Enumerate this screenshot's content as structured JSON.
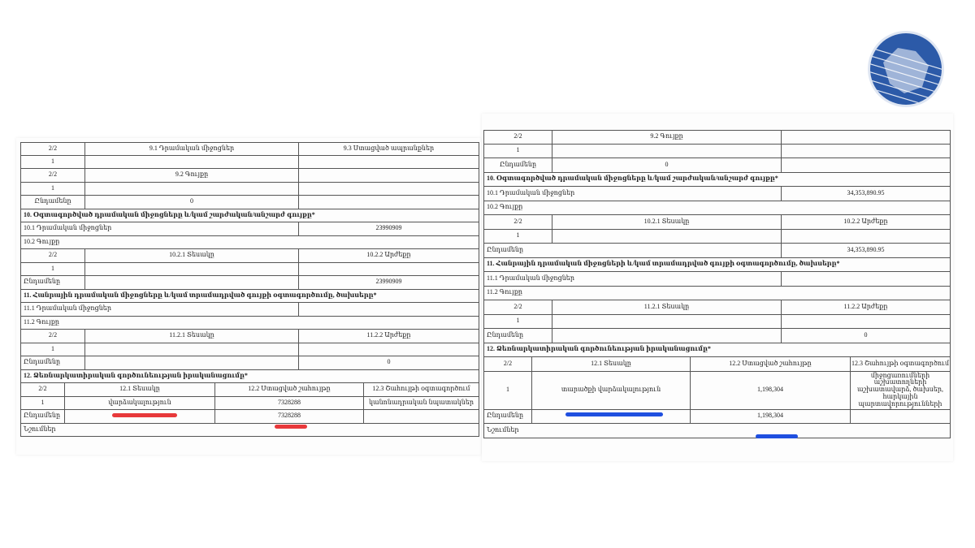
{
  "left_table": {
    "rows": [
      [
        "2/2",
        "9.1 Դրամական միջոցներ",
        "9.3 Ստացված ապրանքներ"
      ],
      [
        "1"
      ],
      [
        "2/2",
        "9.2 Գույքը"
      ],
      [
        "1"
      ],
      [
        "Ընդամենը",
        "0"
      ],
      [
        "10. Օգտագործված դրամական միջոցները և/կամ շարժական/անշարժ գույքը*"
      ],
      [
        "10.1 Դրամական միջոցներ",
        "23990909"
      ],
      [
        "10.2 Գույքը"
      ],
      [
        "2/2",
        "10.2.1 Տեսակը",
        "10.2.2 Արժեքը"
      ],
      [
        "1"
      ],
      [
        "Ընդամենը",
        "23990909"
      ],
      [
        "11. Հանրային դրամական միջոցները և/կամ տրամադրված գույքի օգտագործումը, ծախսերը*"
      ],
      [
        "11.1 Դրամական միջոցներ"
      ],
      [
        "11.2 Գույքը"
      ],
      [
        "2/2",
        "11.2.1 Տեսակը",
        "11.2.2 Արժեքը"
      ],
      [
        "1"
      ],
      [
        "Ընդամենը",
        "0"
      ],
      [
        "12. Ձեռնարկատիրական գործունեության իրականացումը*"
      ],
      [
        "2/2",
        "12.1 Տեսակը",
        "12.2 Ստացված շահույթը",
        "12.3 Շահույթի օգտագործում"
      ],
      [
        "1",
        "վարձակալություն",
        "7328288",
        "կանոնադրական նպատակներ"
      ],
      [
        "Ընդամենը",
        "7328288"
      ],
      [
        "Նշումներ"
      ]
    ]
  },
  "right_table": {
    "rows": [
      [
        "2/2",
        "9.2 Գույքը"
      ],
      [
        "1"
      ],
      [
        "Ընդամենը",
        "0"
      ],
      [
        "10. Օգտագործված դրամական միջոցները և/կամ շարժական/անշարժ գույքը*"
      ],
      [
        "10.1 Դրամական միջոցներ",
        "34,353,890.95"
      ],
      [
        "10.2 Գույքը"
      ],
      [
        "2/2",
        "10.2.1 Տեսակը",
        "10.2.2 Արժեքը"
      ],
      [
        "1"
      ],
      [
        "Ընդամենը",
        "34,353,890.95"
      ],
      [
        "11. Հանրային դրամական միջոցների և/կամ տրամադրված գույքի օգտագործումը, ծախսերը*"
      ],
      [
        "11.1 Դրամական միջոցներ"
      ],
      [
        "11.2 Գույքը"
      ],
      [
        "2/2",
        "11.2.1 Տեսակը",
        "11.2.2 Արժեքը"
      ],
      [
        "1"
      ],
      [
        "Ընդամենը",
        "0"
      ],
      [
        "12. Ձեռնարկատիրական գործունեության իրականացումը*"
      ],
      [
        "2/2",
        "12.1 Տեսակը",
        "12.2 Ստացված շահույթը",
        "12.3 Շահույթի օգտագործում"
      ],
      [
        "1",
        "տարածքի վարձակալություն",
        "1,198,304",
        "Անդամավճար միջոցառումների աշխատողների աշխատավարձ, ծախսեր, հարկային պարտավորությունների մարում"
      ],
      [
        "Ընդամենը",
        "1,198,304"
      ],
      [
        "Նշումներ"
      ]
    ]
  }
}
